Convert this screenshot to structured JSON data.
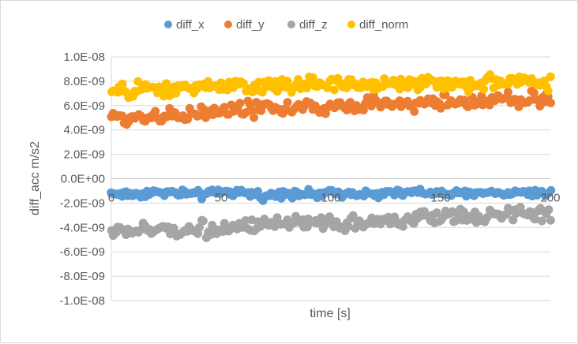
{
  "chart_data": {
    "type": "scatter",
    "title": "",
    "xlabel": "time [s]",
    "ylabel": "diff_acc m/s2",
    "xlim": [
      0,
      200
    ],
    "ylim": [
      -1e-08,
      1e-08
    ],
    "x_ticks": [
      "0",
      "50",
      "100",
      "150",
      "200"
    ],
    "y_ticks": [
      "1.0E-08",
      "8.0E-09",
      "6.0E-09",
      "4.0E-09",
      "2.0E-09",
      "0.0E+00",
      "-2.0E-09",
      "-4.0E-09",
      "-6.0E-09",
      "-8.0E-09",
      "-1.0E-08"
    ],
    "grid": "horizontal",
    "legend_position": "top",
    "series": [
      {
        "name": "diff_x",
        "color": "#5b9bd5",
        "x": [
          0,
          10,
          20,
          30,
          40,
          50,
          60,
          70,
          80,
          90,
          100,
          110,
          120,
          130,
          140,
          150,
          160,
          170,
          180,
          190,
          200
        ],
        "y": [
          -1.2e-09,
          -1.3e-09,
          -1.1e-09,
          -1.2e-09,
          -1.3e-09,
          -1.1e-09,
          -1.2e-09,
          -1.4e-09,
          -1.1e-09,
          -1.3e-09,
          -1.2e-09,
          -1.1e-09,
          -1.3e-09,
          -1.2e-09,
          -1.1e-09,
          -1.2e-09,
          -1.3e-09,
          -1.1e-09,
          -1.2e-09,
          -1.1e-09,
          -1.2e-09
        ]
      },
      {
        "name": "diff_y",
        "color": "#ed7d31",
        "x": [
          0,
          10,
          20,
          30,
          40,
          50,
          60,
          70,
          80,
          90,
          100,
          110,
          120,
          130,
          140,
          150,
          160,
          170,
          180,
          190,
          200
        ],
        "y": [
          5e-09,
          5e-09,
          5.2e-09,
          5.3e-09,
          5.3e-09,
          5.6e-09,
          5.7e-09,
          5.8e-09,
          5.8e-09,
          5.8e-09,
          5.9e-09,
          6e-09,
          6.1e-09,
          6.1e-09,
          6.2e-09,
          6.3e-09,
          6.3e-09,
          6.4e-09,
          6.5e-09,
          6.5e-09,
          6.6e-09
        ]
      },
      {
        "name": "diff_z",
        "color": "#a5a5a5",
        "x": [
          0,
          10,
          20,
          30,
          40,
          50,
          60,
          70,
          80,
          90,
          100,
          110,
          120,
          130,
          140,
          150,
          160,
          170,
          180,
          190,
          200
        ],
        "y": [
          -4.3e-09,
          -4.3e-09,
          -4.2e-09,
          -4.2e-09,
          -4.1e-09,
          -4e-09,
          -4e-09,
          -3.9e-09,
          -3.8e-09,
          -3.8e-09,
          -3.7e-09,
          -3.6e-09,
          -3.5e-09,
          -3.4e-09,
          -3.3e-09,
          -3.2e-09,
          -3.1e-09,
          -3e-09,
          -2.9e-09,
          -2.9e-09,
          -2.8e-09
        ]
      },
      {
        "name": "diff_norm",
        "color": "#ffc000",
        "x": [
          0,
          10,
          20,
          30,
          40,
          50,
          60,
          70,
          80,
          90,
          100,
          110,
          120,
          130,
          140,
          150,
          160,
          170,
          180,
          190,
          200
        ],
        "y": [
          7.1e-09,
          7.2e-09,
          7.3e-09,
          7.4e-09,
          7.4e-09,
          7.5e-09,
          7.6e-09,
          7.6e-09,
          7.6e-09,
          7.7e-09,
          7.7e-09,
          7.7e-09,
          7.8e-09,
          7.8e-09,
          7.8e-09,
          7.9e-09,
          7.9e-09,
          7.9e-09,
          8e-09,
          8e-09,
          8e-09
        ]
      }
    ]
  }
}
